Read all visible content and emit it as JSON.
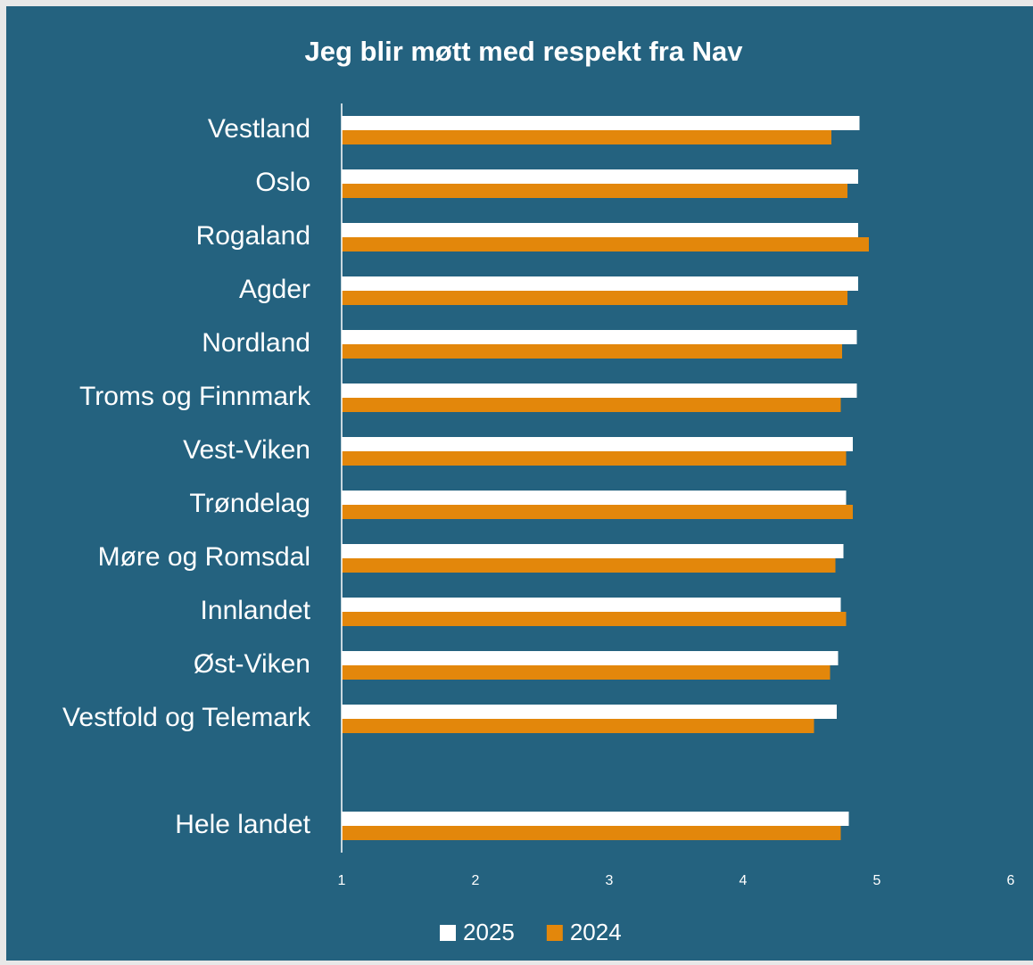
{
  "chart_data": {
    "type": "hbar",
    "title": "Jeg blir møtt med respekt fra Nav",
    "categories": [
      "Vestland",
      "Oslo",
      "Rogaland",
      "Agder",
      "Nordland",
      "Troms og Finnmark",
      "Vest-Viken",
      "Trøndelag",
      "Møre og Romsdal",
      "Innlandet",
      "Øst-Viken",
      "Vestfold og Telemark",
      null,
      "Hele landet"
    ],
    "series": [
      {
        "name": "2025",
        "color": "#ffffff",
        "values": [
          4.87,
          4.86,
          4.86,
          4.86,
          4.85,
          4.85,
          4.82,
          4.77,
          4.75,
          4.73,
          4.71,
          4.7,
          null,
          4.79
        ]
      },
      {
        "name": "2024",
        "color": "#e3870b",
        "values": [
          4.66,
          4.78,
          4.94,
          4.78,
          4.74,
          4.73,
          4.77,
          4.82,
          4.69,
          4.77,
          4.65,
          4.53,
          null,
          4.73
        ]
      }
    ],
    "xlim": [
      1,
      6
    ],
    "xticks": [
      1,
      2,
      3,
      4,
      5,
      6
    ],
    "grid": false,
    "legend": "bottom"
  }
}
